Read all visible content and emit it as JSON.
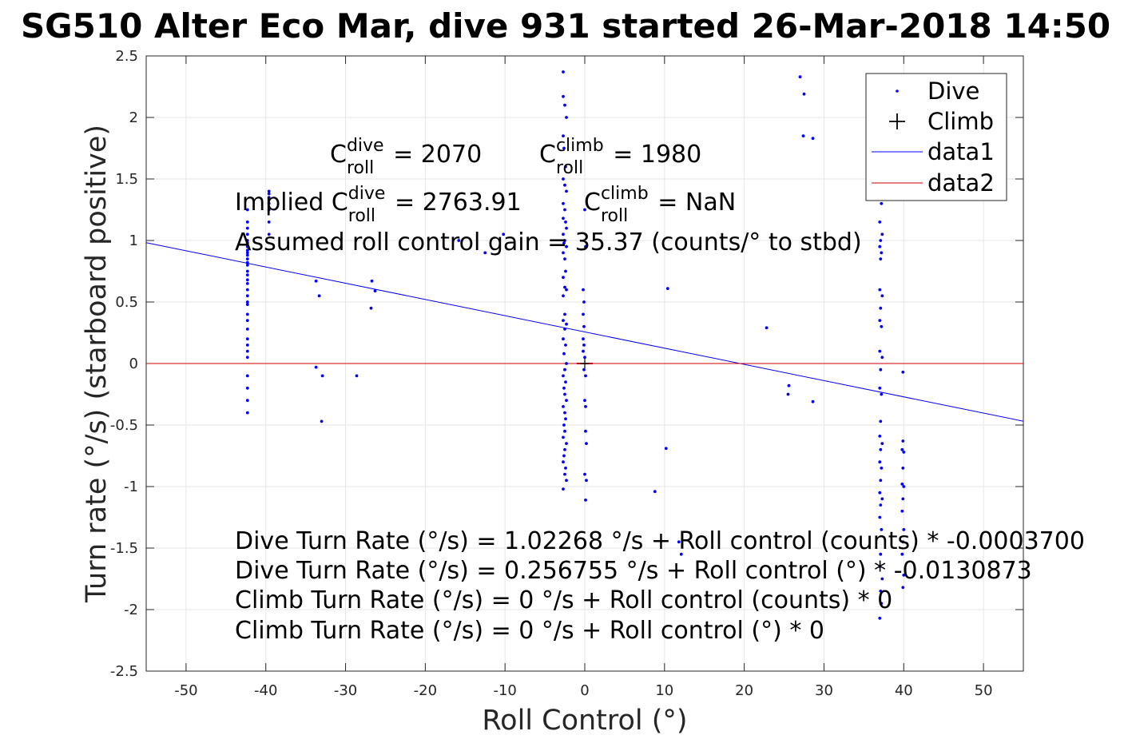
{
  "chart_data": {
    "type": "scatter",
    "title": "SG510 Alter Eco Mar, dive 931 started 26-Mar-2018 14:50",
    "xlabel": "Roll Control (°)",
    "ylabel": "Turn rate (°/s) (starboard positive)",
    "xlim": [
      -55,
      55
    ],
    "ylim": [
      -2.5,
      2.5
    ],
    "x_ticks": [
      -50,
      -40,
      -30,
      -20,
      -10,
      0,
      10,
      20,
      30,
      40,
      50
    ],
    "y_ticks": [
      -2.5,
      -2,
      -1.5,
      -1,
      -0.5,
      0,
      0.5,
      1,
      1.5,
      2,
      2.5
    ],
    "x_tick_labels": [
      "-50",
      "-40",
      "-30",
      "-20",
      "-10",
      "0",
      "10",
      "20",
      "30",
      "40",
      "50"
    ],
    "y_tick_labels": [
      "-2.5",
      "-2",
      "-1.5",
      "-1",
      "-0.5",
      "0",
      "0.5",
      "1",
      "1.5",
      "2",
      "2.5"
    ],
    "grid": true,
    "legend_position": "top-right",
    "legend": [
      {
        "label": "Dive",
        "marker": "dot",
        "color": "#0000ff"
      },
      {
        "label": "Climb",
        "marker": "plus",
        "color": "#000000"
      },
      {
        "label": "data1",
        "marker": "line",
        "color": "#0000ff"
      },
      {
        "label": "data2",
        "marker": "line",
        "color": "#cc0000"
      }
    ],
    "series": [
      {
        "name": "Dive",
        "type": "scatter",
        "color": "#0000ff",
        "points": [
          [
            -42.3,
            1.25
          ],
          [
            -42.3,
            1.15
          ],
          [
            -42.3,
            1.1
          ],
          [
            -42.3,
            1.05
          ],
          [
            -42.3,
            1.0
          ],
          [
            -42.3,
            0.98
          ],
          [
            -42.3,
            0.95
          ],
          [
            -42.3,
            0.92
          ],
          [
            -42.3,
            0.9
          ],
          [
            -42.3,
            0.88
          ],
          [
            -42.3,
            0.85
          ],
          [
            -42.3,
            0.82
          ],
          [
            -42.3,
            0.8
          ],
          [
            -42.3,
            0.75
          ],
          [
            -42.3,
            0.72
          ],
          [
            -42.3,
            0.68
          ],
          [
            -42.3,
            0.65
          ],
          [
            -42.3,
            0.6
          ],
          [
            -42.3,
            0.55
          ],
          [
            -42.3,
            0.5
          ],
          [
            -42.3,
            0.48
          ],
          [
            -42.3,
            0.4
          ],
          [
            -42.3,
            0.35
          ],
          [
            -42.3,
            0.28
          ],
          [
            -42.3,
            0.2
          ],
          [
            -42.3,
            0.15
          ],
          [
            -42.3,
            0.1
          ],
          [
            -42.3,
            0.05
          ],
          [
            -42.3,
            -0.1
          ],
          [
            -42.3,
            -0.2
          ],
          [
            -42.3,
            -0.3
          ],
          [
            -42.3,
            -0.4
          ],
          [
            -39.6,
            1.4
          ],
          [
            -39.6,
            1.38
          ],
          [
            -39.6,
            1.35
          ],
          [
            -39.6,
            1.3
          ],
          [
            -39.6,
            1.25
          ],
          [
            -39.6,
            1.15
          ],
          [
            -39.6,
            1.05
          ],
          [
            -33.7,
            0.67
          ],
          [
            -33.3,
            0.55
          ],
          [
            -33.7,
            -0.03
          ],
          [
            -32.9,
            -0.1
          ],
          [
            -33.0,
            -0.47
          ],
          [
            -28.6,
            -0.1
          ],
          [
            -26.7,
            0.67
          ],
          [
            -26.3,
            0.59
          ],
          [
            -26.8,
            0.45
          ],
          [
            -15.8,
            1.0
          ],
          [
            -12.5,
            0.9
          ],
          [
            -10.2,
            1.05
          ],
          [
            -2.7,
            2.37
          ],
          [
            -2.7,
            2.17
          ],
          [
            -2.5,
            2.1
          ],
          [
            -2.3,
            2.0
          ],
          [
            -2.7,
            1.85
          ],
          [
            -2.6,
            1.75
          ],
          [
            -2.4,
            1.6
          ],
          [
            -2.7,
            1.5
          ],
          [
            -2.5,
            1.45
          ],
          [
            -2.3,
            1.4
          ],
          [
            -2.7,
            1.3
          ],
          [
            -2.5,
            1.25
          ],
          [
            -2.7,
            1.18
          ],
          [
            -2.4,
            1.15
          ],
          [
            -2.3,
            1.1
          ],
          [
            -2.7,
            1.05
          ],
          [
            -2.5,
            1.0
          ],
          [
            -2.6,
            0.98
          ],
          [
            -2.3,
            0.95
          ],
          [
            -2.7,
            0.9
          ],
          [
            -2.5,
            0.85
          ],
          [
            -2.4,
            0.75
          ],
          [
            -2.7,
            0.7
          ],
          [
            -2.5,
            0.62
          ],
          [
            -2.3,
            0.6
          ],
          [
            -2.7,
            0.55
          ],
          [
            -2.5,
            0.4
          ],
          [
            -2.7,
            0.35
          ],
          [
            -2.3,
            0.32
          ],
          [
            -2.5,
            0.28
          ],
          [
            -2.7,
            0.2
          ],
          [
            -2.4,
            0.15
          ],
          [
            -2.6,
            0.08
          ],
          [
            -2.3,
            0.0
          ],
          [
            -2.5,
            -0.05
          ],
          [
            -2.7,
            -0.1
          ],
          [
            -2.4,
            -0.15
          ],
          [
            -2.6,
            -0.2
          ],
          [
            -2.5,
            -0.25
          ],
          [
            -2.3,
            -0.3
          ],
          [
            -2.7,
            -0.35
          ],
          [
            -2.5,
            -0.4
          ],
          [
            -2.4,
            -0.45
          ],
          [
            -2.6,
            -0.5
          ],
          [
            -2.5,
            -0.55
          ],
          [
            -2.7,
            -0.6
          ],
          [
            -2.3,
            -0.65
          ],
          [
            -2.5,
            -0.7
          ],
          [
            -2.6,
            -0.75
          ],
          [
            -2.7,
            -0.8
          ],
          [
            -2.4,
            -0.85
          ],
          [
            -2.5,
            -0.9
          ],
          [
            -2.3,
            -0.95
          ],
          [
            -2.7,
            -1.02
          ],
          [
            -0.2,
            0.6
          ],
          [
            -0.1,
            0.5
          ],
          [
            -0.2,
            0.4
          ],
          [
            -0.1,
            0.3
          ],
          [
            -0.2,
            0.2
          ],
          [
            -0.1,
            0.15
          ],
          [
            -0.2,
            0.1
          ],
          [
            0.0,
            0.05
          ],
          [
            -0.1,
            -0.05
          ],
          [
            0.1,
            -0.1
          ],
          [
            0.0,
            -0.3
          ],
          [
            0.1,
            -0.35
          ],
          [
            0.1,
            -0.55
          ],
          [
            0.2,
            -0.65
          ],
          [
            0.0,
            -0.9
          ],
          [
            0.2,
            -0.95
          ],
          [
            0.1,
            -1.11
          ],
          [
            0.0,
            1.25
          ],
          [
            0.1,
            0.95
          ],
          [
            10.4,
            0.61
          ],
          [
            10.2,
            -0.69
          ],
          [
            8.8,
            -1.04
          ],
          [
            11.8,
            -1.45
          ],
          [
            12.1,
            -1.55
          ],
          [
            22.8,
            0.29
          ],
          [
            25.6,
            -0.18
          ],
          [
            25.5,
            -0.25
          ],
          [
            28.6,
            -0.31
          ],
          [
            27.0,
            2.33
          ],
          [
            27.5,
            2.19
          ],
          [
            27.4,
            1.85
          ],
          [
            28.6,
            1.83
          ],
          [
            37.0,
            1.35
          ],
          [
            37.2,
            1.3
          ],
          [
            37.0,
            1.15
          ],
          [
            37.3,
            1.05
          ],
          [
            37.1,
            1.0
          ],
          [
            37.0,
            0.95
          ],
          [
            37.2,
            0.9
          ],
          [
            37.1,
            0.85
          ],
          [
            37.0,
            0.6
          ],
          [
            37.3,
            0.55
          ],
          [
            37.1,
            0.45
          ],
          [
            37.0,
            0.35
          ],
          [
            37.2,
            0.3
          ],
          [
            37.0,
            0.1
          ],
          [
            37.3,
            0.05
          ],
          [
            37.1,
            -0.05
          ],
          [
            37.0,
            -0.2
          ],
          [
            37.2,
            -0.25
          ],
          [
            37.1,
            -0.47
          ],
          [
            37.0,
            -0.59
          ],
          [
            37.3,
            -0.65
          ],
          [
            37.1,
            -0.7
          ],
          [
            37.0,
            -0.8
          ],
          [
            37.2,
            -0.85
          ],
          [
            37.1,
            -0.95
          ],
          [
            37.0,
            -1.05
          ],
          [
            37.3,
            -1.1
          ],
          [
            37.1,
            -1.15
          ],
          [
            37.0,
            -1.25
          ],
          [
            37.2,
            -1.35
          ],
          [
            37.1,
            -1.55
          ],
          [
            37.0,
            -1.65
          ],
          [
            37.3,
            -1.75
          ],
          [
            37.1,
            -1.85
          ],
          [
            37.2,
            -1.95
          ],
          [
            37.0,
            -2.07
          ],
          [
            39.9,
            -0.07
          ],
          [
            39.9,
            -0.63
          ],
          [
            39.8,
            -0.7
          ],
          [
            40.0,
            -0.72
          ],
          [
            39.9,
            -0.85
          ],
          [
            39.8,
            -0.98
          ],
          [
            40.0,
            -1.0
          ],
          [
            39.9,
            -1.1
          ],
          [
            39.8,
            -1.2
          ],
          [
            40.0,
            -1.35
          ],
          [
            39.9,
            -1.45
          ],
          [
            39.8,
            -1.55
          ],
          [
            40.0,
            -1.72
          ],
          [
            39.9,
            -1.82
          ]
        ]
      },
      {
        "name": "Climb",
        "type": "scatter",
        "color": "#000000",
        "points": [
          [
            0,
            0
          ]
        ]
      },
      {
        "name": "data1",
        "type": "line",
        "color": "#0000ff",
        "x": [
          -55,
          55
        ],
        "y": [
          0.9825,
          -0.4688
        ]
      },
      {
        "name": "data2",
        "type": "line",
        "color": "#cc0000",
        "x": [
          -55,
          55
        ],
        "y": [
          0,
          0
        ]
      },
      {
        "name": "",
        "type": "line",
        "color": "#cc0000",
        "x": [
          -1,
          1
        ],
        "y": [
          0,
          0
        ]
      }
    ],
    "annotations": [
      {
        "id": "c-dive",
        "prefix": "",
        "base": "C",
        "sup": "dive",
        "sub": "roll",
        "value": " = 2070"
      },
      {
        "id": "c-climb",
        "prefix": "",
        "base": "C",
        "sup": "climb",
        "sub": "roll",
        "value": " = 1980"
      },
      {
        "id": "implied-dive",
        "prefix": "Implied ",
        "base": "C",
        "sup": "dive",
        "sub": "roll",
        "value": " = 2763.91"
      },
      {
        "id": "implied-climb",
        "prefix": "",
        "base": "C",
        "sup": "climb",
        "sub": "roll",
        "value": " = NaN"
      }
    ],
    "text_lines": [
      "Assumed roll control gain = 35.37 (counts/° to stbd)",
      "Dive Turn Rate (°/s) = 1.02268 °/s + Roll control (counts) * -0.0003700",
      "Dive Turn Rate (°/s) = 0.256755 °/s + Roll control (°) * -0.0130873",
      "Climb Turn Rate (°/s) = 0 °/s + Roll control (counts) * 0",
      "Climb Turn Rate (°/s) = 0 °/s + Roll control (°) * 0"
    ]
  }
}
